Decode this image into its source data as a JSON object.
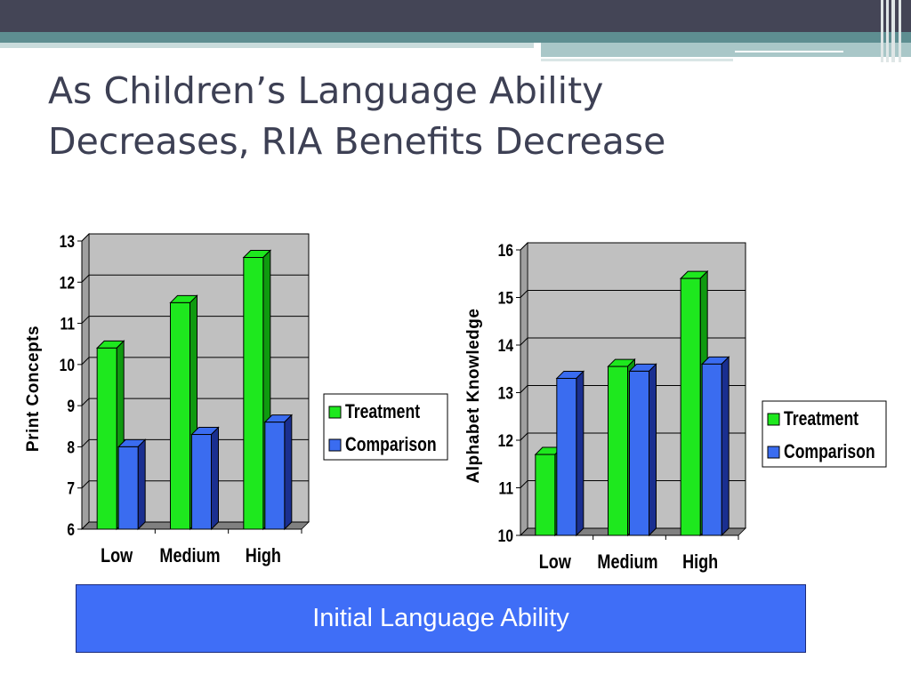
{
  "slide": {
    "title_line1": "As Children’s Language Ability",
    "title_line2": "Decreases, RIA Benefits Decrease",
    "x_axis_caption": "Initial Language Ability"
  },
  "colors": {
    "treatment": "#1ee81e",
    "treatment_side": "#0f9a0f",
    "comparison": "#3a6cf0",
    "comparison_side": "#1a2f90",
    "plot_bg": "#c0c0c0",
    "x_box": "#3f6ef7"
  },
  "chart_data": [
    {
      "type": "bar",
      "categories": [
        "Low",
        "Medium",
        "High"
      ],
      "series": [
        {
          "name": "Treatment",
          "values": [
            10.4,
            11.5,
            12.6
          ]
        },
        {
          "name": "Comparison",
          "values": [
            8.0,
            8.3,
            8.6
          ]
        }
      ],
      "ylabel": "Print Concepts",
      "ylim": [
        6,
        13
      ],
      "yticks": [
        "6",
        "7",
        "8",
        "9",
        "10",
        "11",
        "12",
        "13"
      ],
      "grid": true,
      "legend": "right"
    },
    {
      "type": "bar",
      "categories": [
        "Low",
        "Medium",
        "High"
      ],
      "series": [
        {
          "name": "Treatment",
          "values": [
            11.7,
            13.55,
            15.4
          ]
        },
        {
          "name": "Comparison",
          "values": [
            13.3,
            13.45,
            13.6
          ]
        }
      ],
      "ylabel": "Alphabet Knowledge",
      "ylim": [
        10,
        16
      ],
      "yticks": [
        "10",
        "11",
        "12",
        "13",
        "14",
        "15",
        "16"
      ],
      "grid": true,
      "legend": "right"
    }
  ]
}
